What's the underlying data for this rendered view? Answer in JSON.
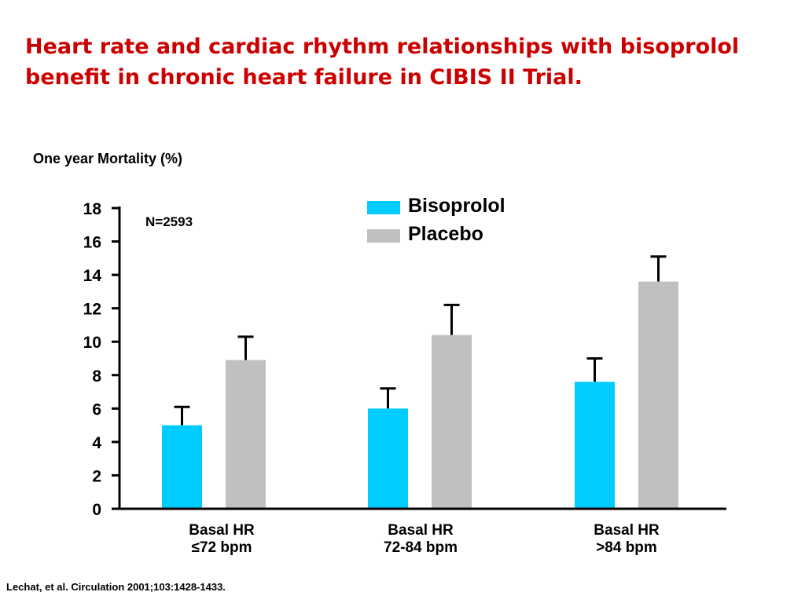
{
  "title": {
    "line1": "Heart rate and cardiac rhythm relationships with bisoprolol",
    "line2": "benefit in chronic heart failure in CIBIS II Trial."
  },
  "note": "N=2593",
  "footnote": "Lechat, et al. Circulation 2001;103:1428-1433.",
  "colors": {
    "title": "#cc0000",
    "bisoprolol": "#00ccff",
    "placebo": "#c0c0c0"
  },
  "chart_data": {
    "type": "bar",
    "ylabel": "One year Mortality (%)",
    "xlabel": "",
    "ylim": [
      0,
      18
    ],
    "yticks": [
      "0",
      "2",
      "4",
      "6",
      "8",
      "10",
      "12",
      "14",
      "16",
      "18"
    ],
    "grid": false,
    "legend_position": "top-right",
    "categories": [
      {
        "line1": "Basal HR",
        "line2": "≤72 bpm"
      },
      {
        "line1": "Basal HR",
        "line2": "72-84 bpm"
      },
      {
        "line1": "Basal HR",
        "line2": ">84 bpm"
      }
    ],
    "series": [
      {
        "name": "Bisoprolol",
        "values": [
          5.0,
          6.0,
          7.6
        ],
        "error_upper": [
          6.1,
          7.2,
          9.0
        ]
      },
      {
        "name": "Placebo",
        "values": [
          8.9,
          10.4,
          13.6
        ],
        "error_upper": [
          10.3,
          12.2,
          15.1
        ]
      }
    ]
  }
}
